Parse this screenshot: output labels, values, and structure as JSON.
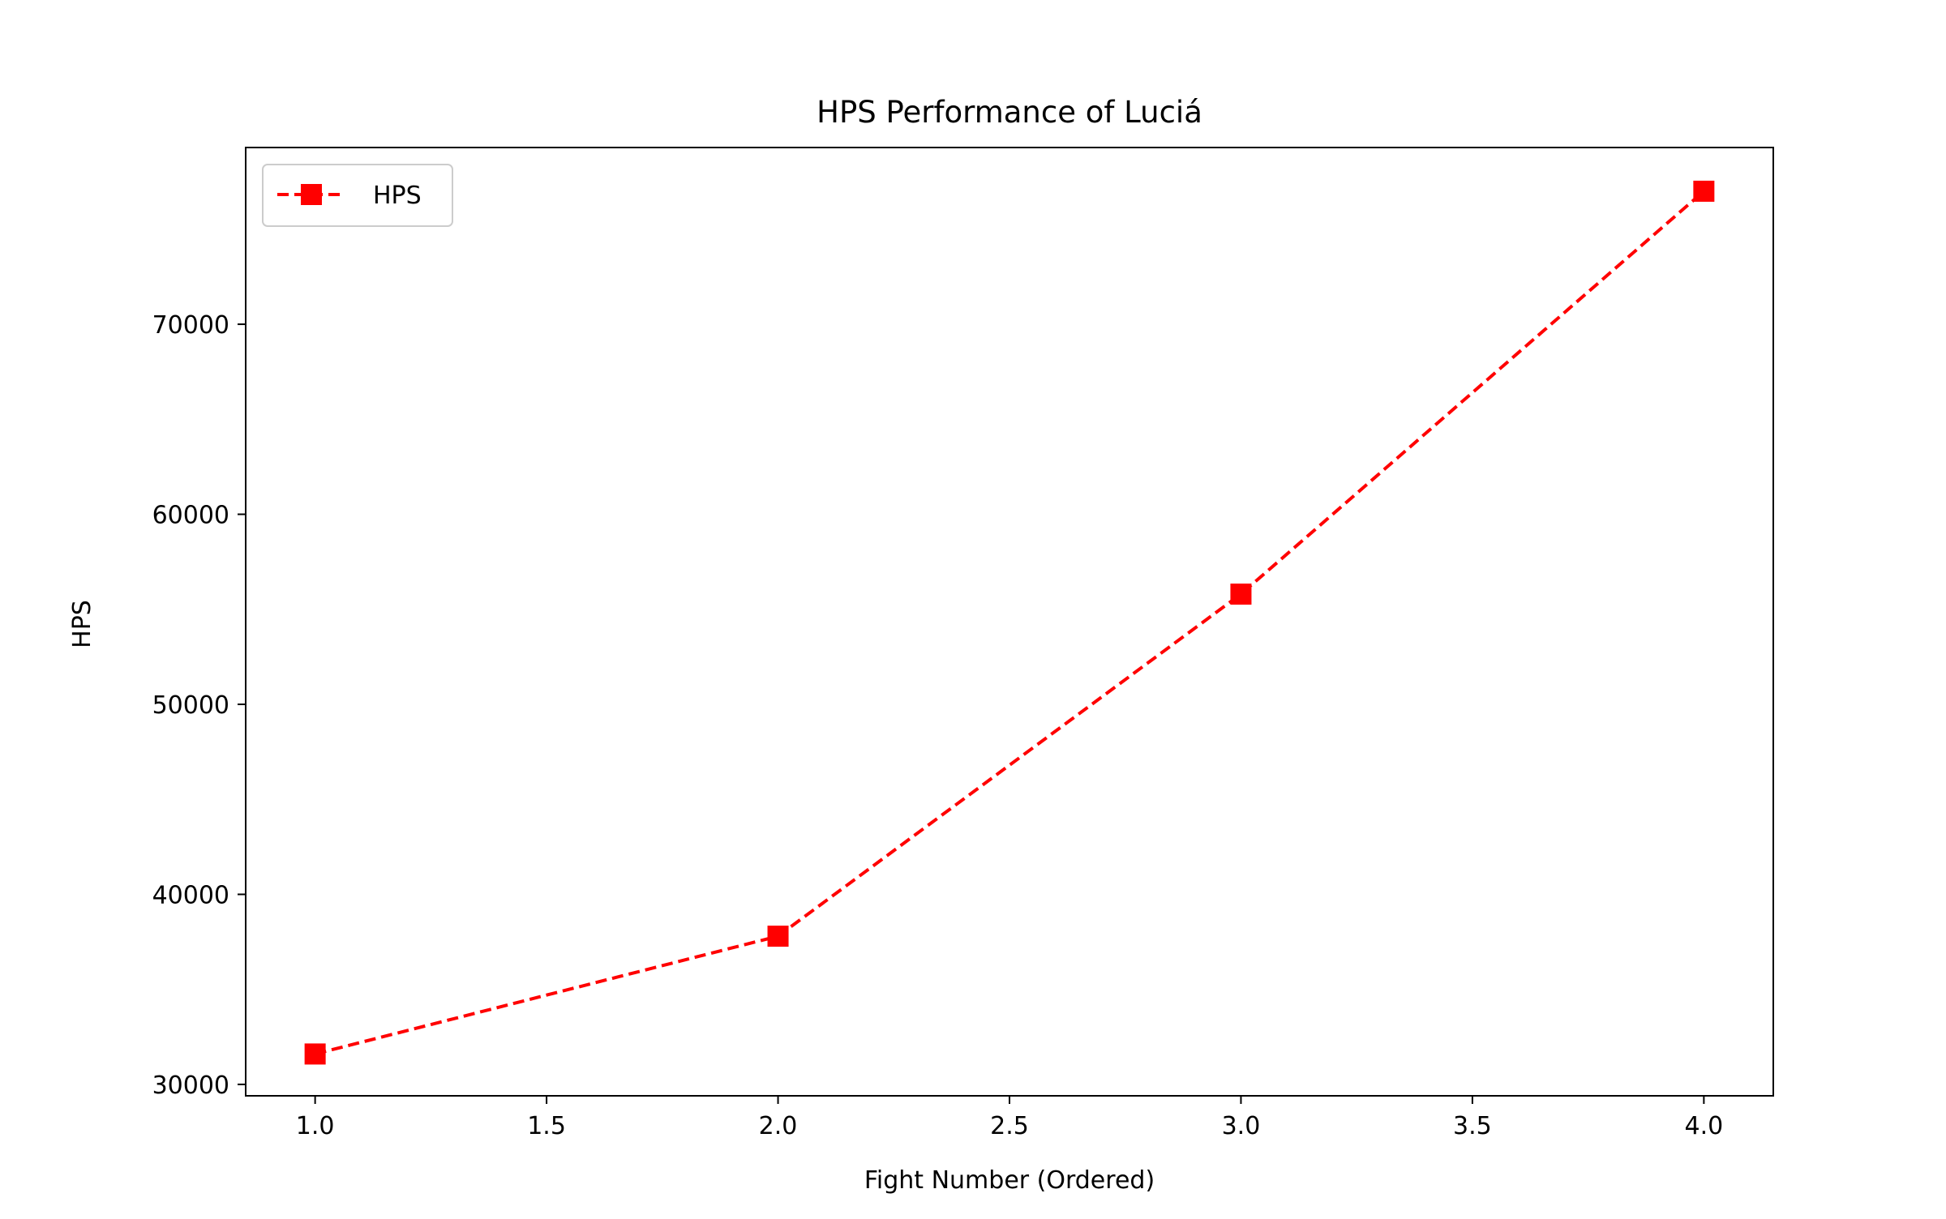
{
  "chart_data": {
    "type": "line",
    "title": "HPS Performance of Luciá",
    "xlabel": "Fight Number (Ordered)",
    "ylabel": "HPS",
    "x": [
      1,
      2,
      3,
      4
    ],
    "series": [
      {
        "name": "HPS",
        "values": [
          31600,
          37800,
          55800,
          77000
        ],
        "color": "#ff0000",
        "linestyle": "dashed",
        "marker": "square"
      }
    ],
    "xlim": [
      0.85,
      4.15
    ],
    "ylim": [
      29400,
      79300
    ],
    "xticks": [
      {
        "value": 1.0,
        "label": "1.0"
      },
      {
        "value": 1.5,
        "label": "1.5"
      },
      {
        "value": 2.0,
        "label": "2.0"
      },
      {
        "value": 2.5,
        "label": "2.5"
      },
      {
        "value": 3.0,
        "label": "3.0"
      },
      {
        "value": 3.5,
        "label": "3.5"
      },
      {
        "value": 4.0,
        "label": "4.0"
      }
    ],
    "yticks": [
      {
        "value": 30000,
        "label": "30000"
      },
      {
        "value": 40000,
        "label": "40000"
      },
      {
        "value": 50000,
        "label": "50000"
      },
      {
        "value": 60000,
        "label": "60000"
      },
      {
        "value": 70000,
        "label": "70000"
      }
    ],
    "grid": false,
    "legend": {
      "position": "top-left"
    }
  }
}
